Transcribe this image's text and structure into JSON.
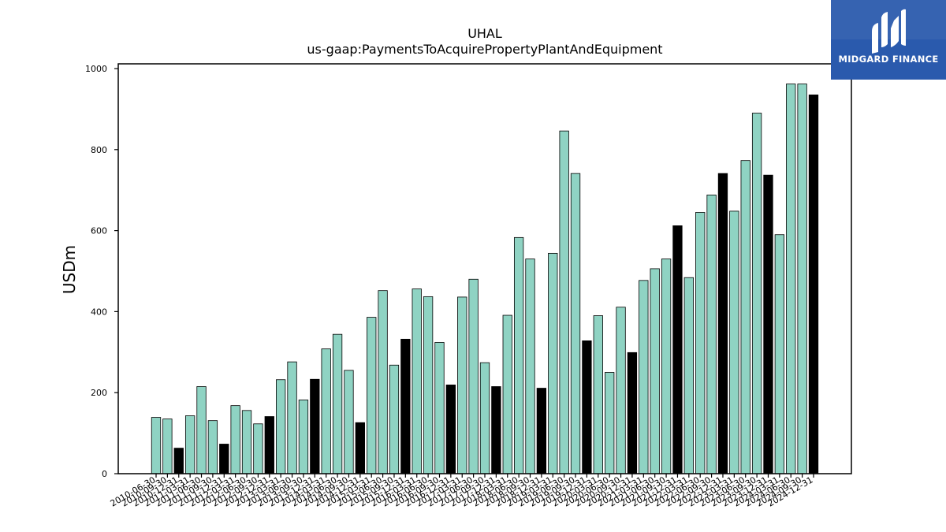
{
  "chart_data": {
    "type": "bar",
    "title": "UHAL",
    "subtitle": "us-gaap:PaymentsToAcquirePropertyPlantAndEquipment",
    "ylabel": "USDm",
    "xlabel": "",
    "ylim": [
      0,
      1000
    ],
    "yticks": [
      0,
      200,
      400,
      600,
      800,
      1000
    ],
    "grid": false,
    "colors": {
      "quarter": "#8fd3c3",
      "fiscal_year_end": "#000000",
      "edge": "#000000"
    },
    "categories": [
      "2010-06-30",
      "2010-09-30",
      "2010-12-31",
      "2011-03-31",
      "2011-06-30",
      "2011-09-30",
      "2011-12-31",
      "2012-03-31",
      "2012-06-30",
      "2012-09-30",
      "2012-12-31",
      "2013-03-31",
      "2013-06-30",
      "2013-09-30",
      "2013-12-31",
      "2014-03-31",
      "2014-06-30",
      "2014-09-30",
      "2014-12-31",
      "2015-03-31",
      "2015-06-30",
      "2015-09-30",
      "2015-12-31",
      "2016-03-31",
      "2016-06-30",
      "2016-09-30",
      "2016-12-31",
      "2017-03-31",
      "2017-06-30",
      "2017-09-30",
      "2017-12-31",
      "2018-03-31",
      "2018-06-30",
      "2018-09-30",
      "2018-12-31",
      "2019-03-31",
      "2019-06-30",
      "2019-09-30",
      "2019-12-31",
      "2020-03-31",
      "2020-06-30",
      "2020-09-30",
      "2020-12-31",
      "2021-03-31",
      "2021-06-30",
      "2021-09-30",
      "2021-12-31",
      "2022-03-31",
      "2022-06-30",
      "2022-09-30",
      "2022-12-31",
      "2023-03-31",
      "2023-06-30",
      "2023-09-30",
      "2023-12-31",
      "2024-03-31",
      "2024-06-30",
      "2024-09-30",
      "2024-12-31"
    ],
    "values": [
      139,
      135,
      63,
      143,
      215,
      131,
      73,
      168,
      156,
      123,
      141,
      232,
      276,
      182,
      233,
      308,
      344,
      255,
      126,
      386,
      452,
      268,
      332,
      456,
      437,
      324,
      219,
      436,
      480,
      274,
      215,
      391,
      583,
      530,
      211,
      544,
      846,
      741,
      328,
      390,
      250,
      411,
      299,
      477,
      506,
      530,
      612,
      484,
      645,
      688,
      741,
      648,
      773,
      890,
      737,
      590,
      962,
      962,
      935
    ],
    "highlight": [
      false,
      false,
      true,
      false,
      false,
      false,
      true,
      false,
      false,
      false,
      true,
      false,
      false,
      false,
      true,
      false,
      false,
      false,
      true,
      false,
      false,
      false,
      true,
      false,
      false,
      false,
      true,
      false,
      false,
      false,
      true,
      false,
      false,
      false,
      true,
      false,
      false,
      false,
      true,
      false,
      false,
      false,
      true,
      false,
      false,
      false,
      true,
      false,
      false,
      false,
      true,
      false,
      false,
      false,
      true,
      false,
      false,
      false,
      true
    ]
  },
  "logo": {
    "text": "MIDGARD FINANCE",
    "background": "#2a5aad"
  }
}
